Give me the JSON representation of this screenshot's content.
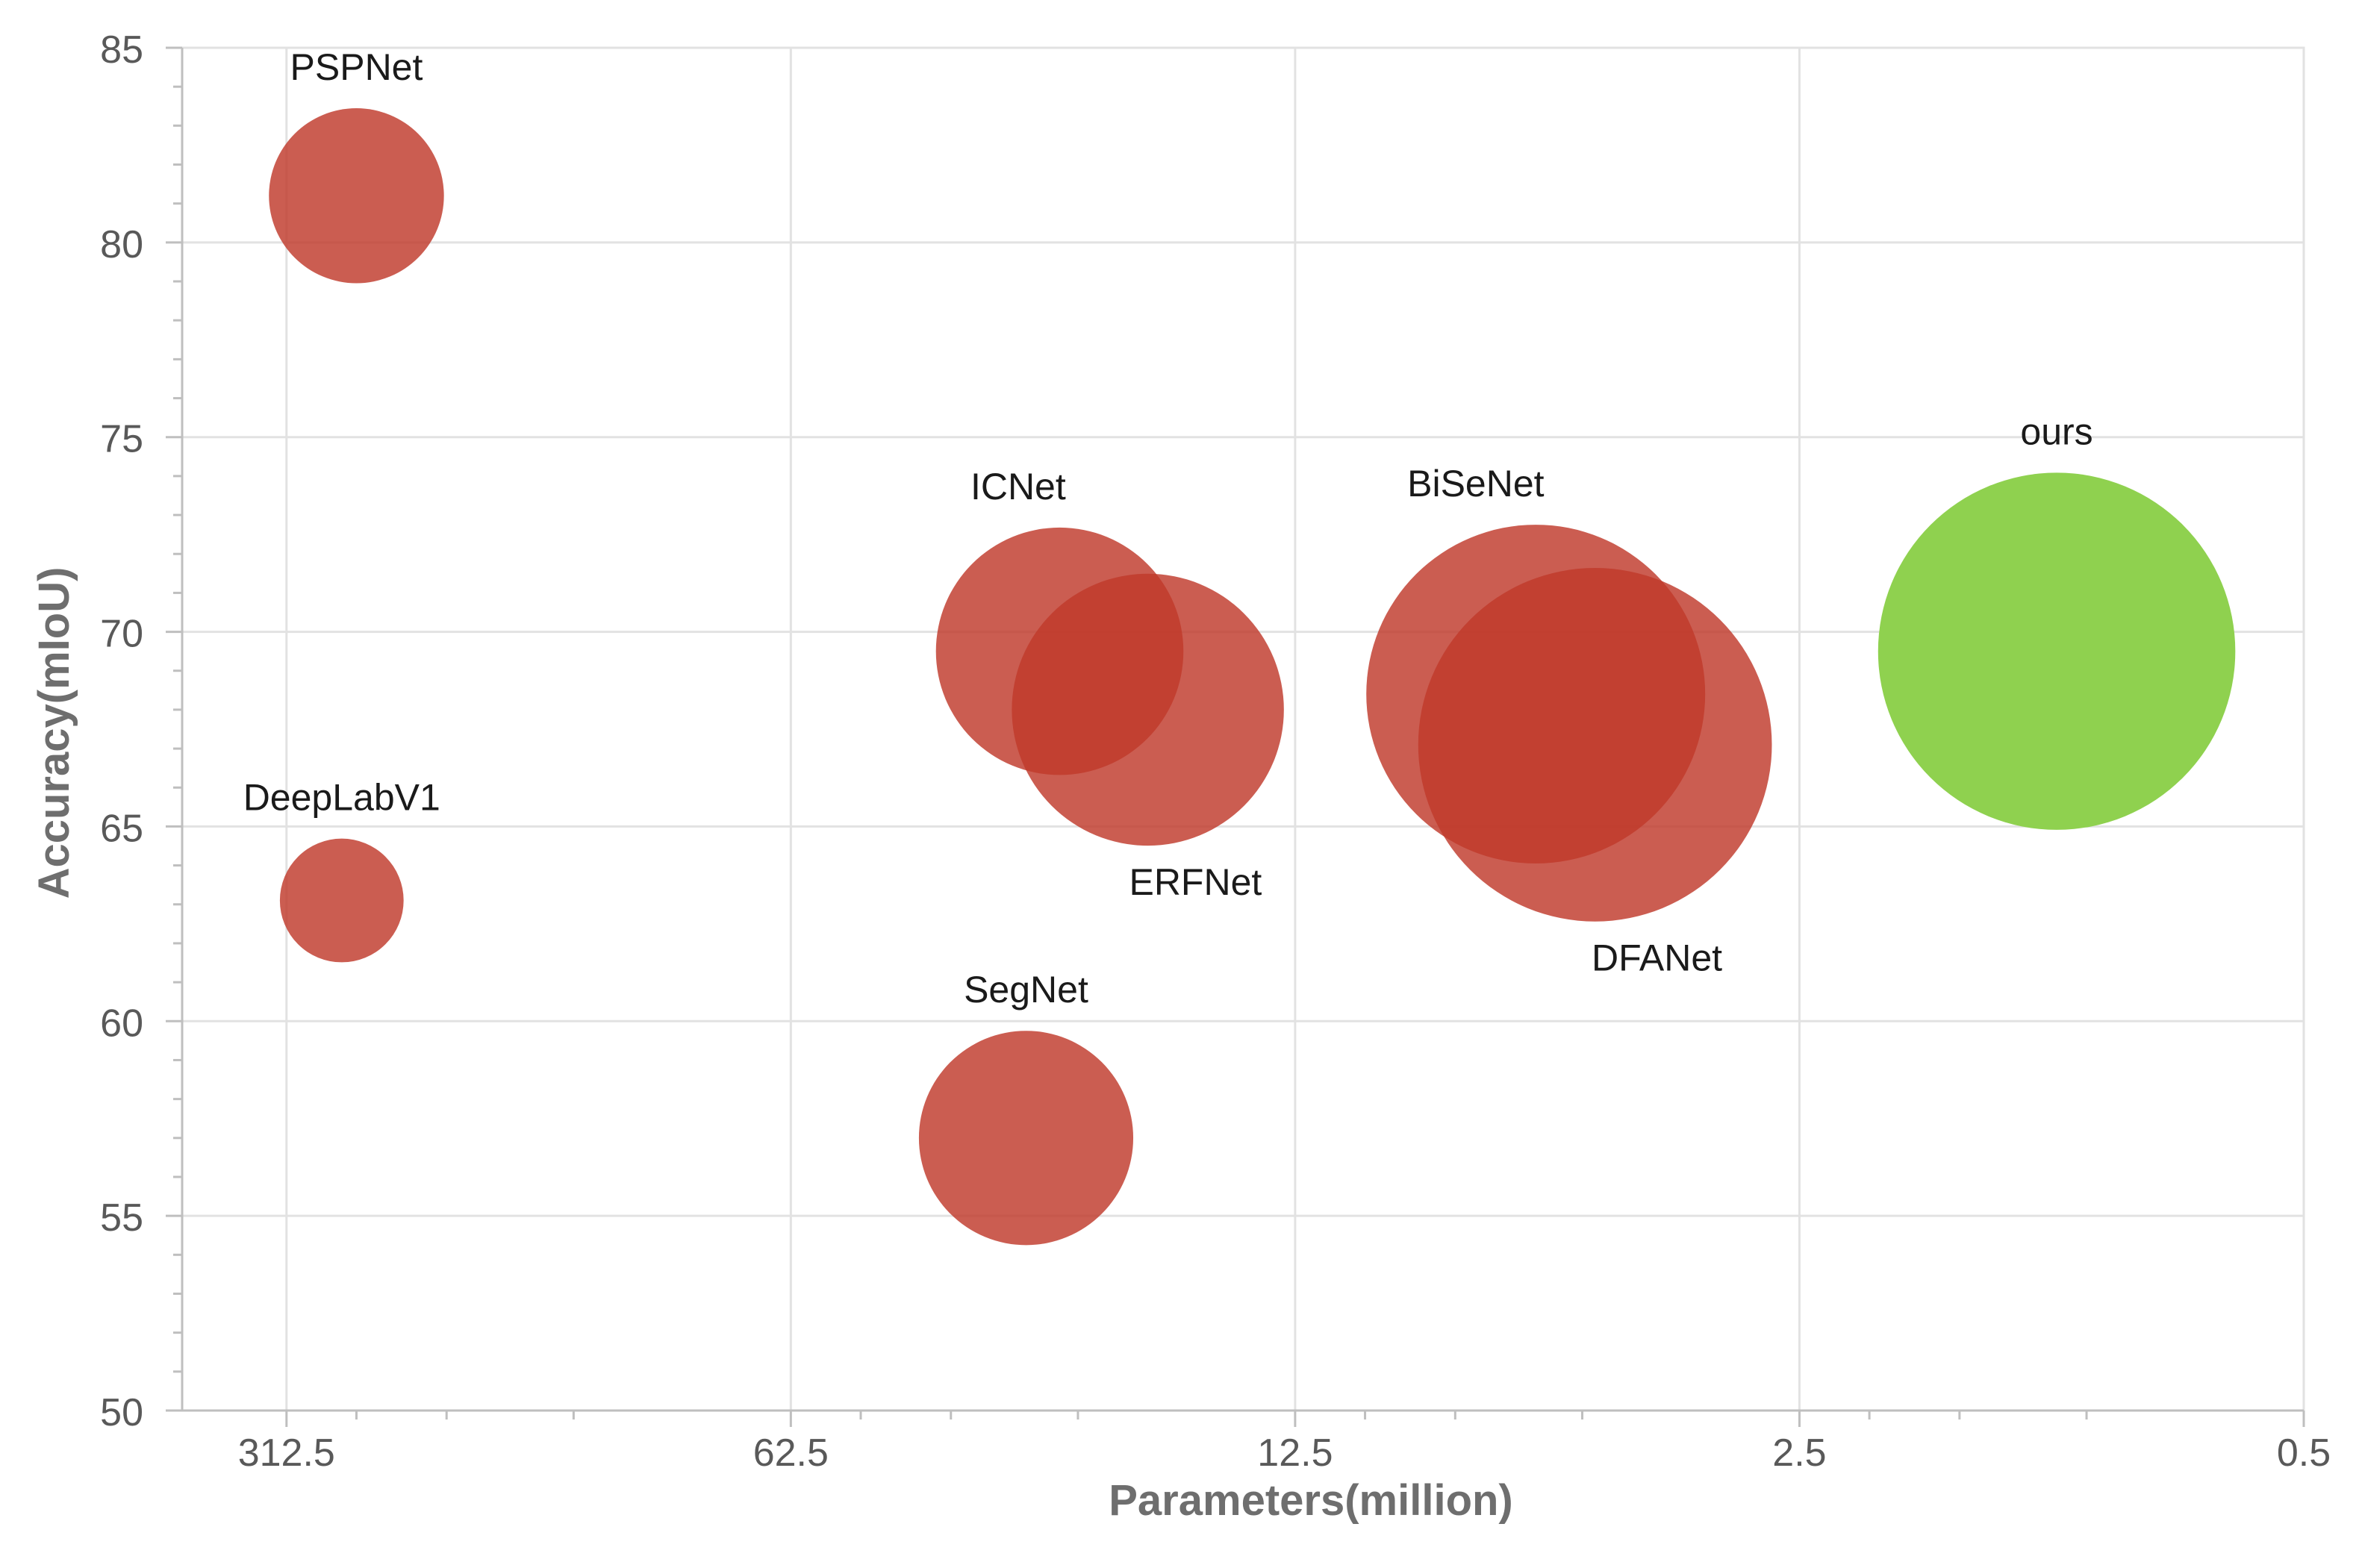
{
  "chart_data": {
    "type": "bubble",
    "title": "",
    "xlabel": "Parameters(million)",
    "ylabel": "Accuracy(mIoU)",
    "xscale": "log-reversed",
    "xlim": [
      436,
      0.5
    ],
    "ylim": [
      50,
      85
    ],
    "xticks": [
      312.5,
      62.5,
      12.5,
      2.5,
      0.5
    ],
    "xtick_labels": [
      "312.5",
      "62.5",
      "12.5",
      "2.5",
      "0.5"
    ],
    "yticks": [
      50,
      55,
      60,
      65,
      70,
      75,
      80,
      85
    ],
    "ytick_labels": [
      "50",
      "55",
      "60",
      "65",
      "70",
      "75",
      "80",
      "85"
    ],
    "grid": true,
    "points": [
      {
        "name": "PSPNet",
        "x": 250,
        "y": 81.2,
        "size": 1.2,
        "color": "#C0392B",
        "label_pos": "above"
      },
      {
        "name": "DeepLabV1",
        "x": 262,
        "y": 63.1,
        "size": 0.6,
        "color": "#C0392B",
        "label_pos": "above"
      },
      {
        "name": "ICNet",
        "x": 26.5,
        "y": 69.5,
        "size": 2.4,
        "color": "#C0392B",
        "label_pos": "above-left"
      },
      {
        "name": "ERFNet",
        "x": 20.0,
        "y": 68.0,
        "size": 2.9,
        "color": "#C0392B",
        "label_pos": "below-right"
      },
      {
        "name": "SegNet",
        "x": 29.5,
        "y": 57.0,
        "size": 1.8,
        "color": "#C0392B",
        "label_pos": "above"
      },
      {
        "name": "BiSeNet",
        "x": 5.8,
        "y": 68.4,
        "size": 4.5,
        "color": "#C0392B",
        "label_pos": "above-left"
      },
      {
        "name": "DFANet",
        "x": 4.8,
        "y": 67.1,
        "size": 4.9,
        "color": "#C0392B",
        "label_pos": "below-right"
      },
      {
        "name": "ours",
        "x": 1.1,
        "y": 69.5,
        "size": 5.0,
        "color": "#8FD14F",
        "label_pos": "above"
      }
    ]
  }
}
